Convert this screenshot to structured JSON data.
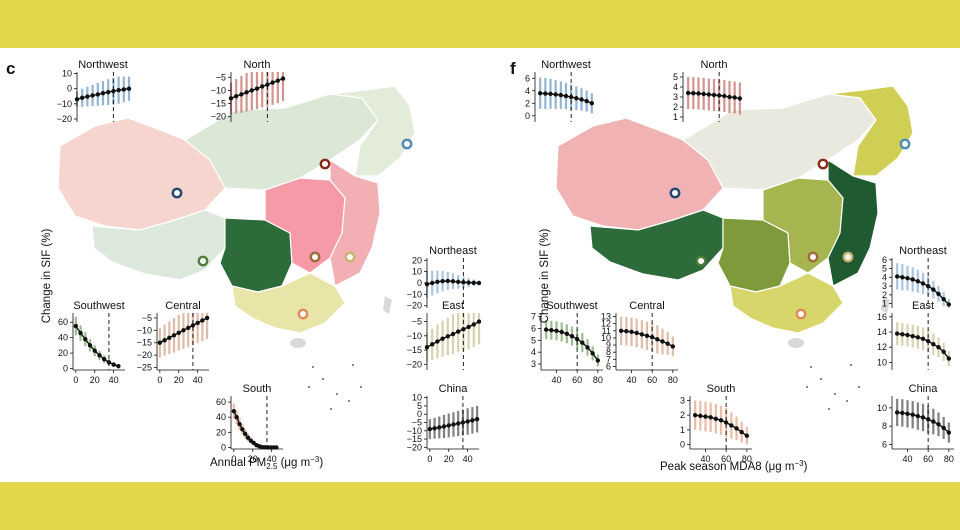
{
  "panels": [
    {
      "letter": "c",
      "ylabel": "Change in SIF (%)",
      "xlabel": "Annual PM",
      "xlabel_sub": "2.5",
      "xlabel_unit": " (μg m",
      "xlabel_exp": "−3",
      "xlabel_close": ")"
    },
    {
      "letter": "f",
      "ylabel": "Change in SIF (%)",
      "xlabel": "Peak season MDA8 (μg m",
      "xlabel_sub": "",
      "xlabel_unit": "",
      "xlabel_exp": "−3",
      "xlabel_close": ")"
    }
  ],
  "region_colors": {
    "Northwest": "#6f9bc3",
    "North": "#c4706a",
    "Northeast": "#8fb2d3",
    "Southwest": "#7aa76a",
    "Central": "#d4a58a",
    "East": "#c9c194",
    "South": "#e3a585",
    "China": "#555555"
  },
  "chart_data": [
    {
      "type": "line",
      "panel": "c",
      "ylabel": "Change in SIF (%)",
      "xlabel": "Annual PM2.5 (μg m−3)",
      "legend": "none",
      "grid": false,
      "charts": [
        {
          "region": "Northwest",
          "xlim": [
            0,
            50
          ],
          "ylim": [
            -22,
            11
          ],
          "yticks": [
            10,
            0,
            -10,
            -20
          ],
          "xticks": [],
          "threshold": 35,
          "x": [
            0,
            5,
            10,
            15,
            20,
            25,
            30,
            35,
            40,
            45,
            50
          ],
          "y": [
            -7,
            -6,
            -5.2,
            -4.5,
            -3.8,
            -3,
            -2.3,
            -1.6,
            -1,
            -0.5,
            0
          ],
          "band": [
            5,
            6,
            6.5,
            7,
            7.5,
            8,
            8.5,
            9,
            9,
            8.5,
            8
          ]
        },
        {
          "region": "North",
          "xlim": [
            0,
            50
          ],
          "ylim": [
            -22,
            -3
          ],
          "yticks": [
            -5,
            -10,
            -15,
            -20
          ],
          "xticks": [],
          "threshold": 35,
          "x": [
            0,
            5,
            10,
            15,
            20,
            25,
            30,
            35,
            40,
            45,
            50
          ],
          "y": [
            -13,
            -12.2,
            -11.5,
            -10.7,
            -10,
            -9.3,
            -8.5,
            -7.8,
            -7,
            -6.3,
            -5.5
          ],
          "band": [
            6,
            6.5,
            7,
            7.3,
            7.5,
            7.8,
            8,
            8.3,
            8.5,
            8.5,
            8.5
          ]
        },
        {
          "region": "Northeast",
          "xlim": [
            0,
            50
          ],
          "ylim": [
            -22,
            22
          ],
          "yticks": [
            20,
            10,
            0,
            -10,
            -20
          ],
          "xticks": [],
          "threshold": 35,
          "x": [
            0,
            5,
            10,
            15,
            20,
            25,
            30,
            35,
            40,
            45,
            50
          ],
          "y": [
            -1,
            0,
            1,
            1.6,
            1.8,
            1.5,
            1,
            0.6,
            0.4,
            0.2,
            0
          ],
          "band": [
            12,
            11,
            10,
            9,
            8,
            7,
            6,
            5,
            4,
            3,
            2
          ]
        },
        {
          "region": "Southwest",
          "xlim": [
            -3,
            52
          ],
          "ylim": [
            -2,
            72
          ],
          "yticks": [
            60,
            40,
            20,
            0
          ],
          "xticks": [
            0,
            20,
            40
          ],
          "threshold": 35,
          "x": [
            0,
            5,
            10,
            15,
            20,
            25,
            30,
            35,
            40,
            45
          ],
          "y": [
            55,
            46,
            38,
            30,
            23,
            17,
            12,
            8,
            5,
            3
          ],
          "band": [
            12,
            10,
            9,
            8,
            7,
            6,
            5,
            4,
            3,
            2
          ]
        },
        {
          "region": "Central",
          "xlim": [
            -3,
            52
          ],
          "ylim": [
            -26,
            -3
          ],
          "yticks": [
            -5,
            -10,
            -15,
            -20,
            -25
          ],
          "xticks": [
            0,
            20,
            40
          ],
          "threshold": 35,
          "x": [
            0,
            5,
            10,
            15,
            20,
            25,
            30,
            35,
            40,
            45,
            50
          ],
          "y": [
            -15,
            -14,
            -13,
            -12,
            -11,
            -10,
            -9,
            -8,
            -7,
            -6,
            -5
          ],
          "band": [
            6,
            6.3,
            6.6,
            7,
            7.2,
            7.5,
            7.8,
            8,
            8.2,
            8.4,
            8.5
          ]
        },
        {
          "region": "East",
          "xlim": [
            0,
            50
          ],
          "ylim": [
            -22,
            -2
          ],
          "yticks": [
            -5,
            -10,
            -15,
            -20
          ],
          "xticks": [],
          "threshold": 35,
          "x": [
            0,
            5,
            10,
            15,
            20,
            25,
            30,
            35,
            40,
            45,
            50
          ],
          "y": [
            -14,
            -13,
            -12,
            -11,
            -10.2,
            -9.4,
            -8.5,
            -7.7,
            -6.9,
            -6,
            -5
          ],
          "band": [
            5,
            5.5,
            6,
            6.3,
            6.6,
            7,
            7.3,
            7.6,
            7.8,
            8,
            8
          ]
        },
        {
          "region": "South",
          "xlim": [
            -3,
            52
          ],
          "ylim": [
            -2,
            68
          ],
          "yticks": [
            60,
            40,
            20,
            0
          ],
          "xticks": [
            0,
            20,
            40
          ],
          "threshold": 35,
          "x": [
            0,
            3,
            6,
            9,
            12,
            15,
            18,
            21,
            24,
            27,
            30,
            33,
            36,
            39,
            42,
            45
          ],
          "y": [
            48,
            40,
            31,
            24,
            18,
            13,
            9,
            6,
            3,
            1.5,
            0.6,
            0.2,
            0,
            0,
            0,
            0
          ],
          "band": [
            10,
            9,
            8,
            7,
            6,
            5,
            4,
            3,
            2,
            1.5,
            1,
            0.5,
            0.3,
            0.2,
            0.1,
            0
          ]
        },
        {
          "region": "China",
          "xlim": [
            -3,
            52
          ],
          "ylim": [
            -21,
            11
          ],
          "yticks": [
            10,
            5,
            0,
            -5,
            -10,
            -15,
            -20
          ],
          "xticks": [
            0,
            20,
            40
          ],
          "threshold": 35,
          "x": [
            0,
            5,
            10,
            15,
            20,
            25,
            30,
            35,
            40,
            45,
            50
          ],
          "y": [
            -9,
            -8.5,
            -8,
            -7.4,
            -6.8,
            -6.2,
            -5.6,
            -5,
            -4.4,
            -3.7,
            -3
          ],
          "band": [
            6,
            6.3,
            6.6,
            7,
            7.2,
            7.4,
            7.6,
            7.8,
            8,
            8,
            8
          ]
        }
      ]
    },
    {
      "type": "line",
      "panel": "f",
      "ylabel": "Change in SIF (%)",
      "xlabel": "Peak season MDA8 (μg m−3)",
      "legend": "none",
      "grid": false,
      "charts": [
        {
          "region": "Northwest",
          "xlim": [
            25,
            85
          ],
          "ylim": [
            -1,
            7
          ],
          "yticks": [
            6,
            4,
            2,
            0
          ],
          "xticks": [],
          "threshold": 60,
          "x": [
            30,
            35,
            40,
            45,
            50,
            55,
            60,
            65,
            70,
            75,
            80
          ],
          "y": [
            3.6,
            3.55,
            3.5,
            3.4,
            3.3,
            3.15,
            3,
            2.8,
            2.6,
            2.35,
            2
          ],
          "band": [
            2.5,
            2.5,
            2.4,
            2.3,
            2.2,
            2.1,
            2,
            1.9,
            1.8,
            1.7,
            1.6
          ]
        },
        {
          "region": "North",
          "xlim": [
            25,
            85
          ],
          "ylim": [
            0.5,
            5.5
          ],
          "yticks": [
            5,
            4,
            3,
            2,
            1
          ],
          "xticks": [],
          "threshold": 60,
          "x": [
            30,
            35,
            40,
            45,
            50,
            55,
            60,
            65,
            70,
            75,
            80
          ],
          "y": [
            3.4,
            3.38,
            3.35,
            3.3,
            3.25,
            3.2,
            3.15,
            3.1,
            3,
            2.95,
            2.85
          ],
          "band": [
            1.6,
            1.6,
            1.6,
            1.6,
            1.6,
            1.6,
            1.6,
            1.6,
            1.6,
            1.6,
            1.6
          ]
        },
        {
          "region": "Northeast",
          "xlim": [
            25,
            85
          ],
          "ylim": [
            0.5,
            6.2
          ],
          "yticks": [
            6,
            5,
            4,
            3,
            2,
            1
          ],
          "xticks": [],
          "threshold": 60,
          "x": [
            30,
            35,
            40,
            45,
            50,
            55,
            60,
            65,
            70,
            75,
            80
          ],
          "y": [
            4.1,
            4,
            3.9,
            3.75,
            3.55,
            3.3,
            3,
            2.6,
            2.1,
            1.5,
            0.9
          ],
          "band": [
            1.5,
            1.5,
            1.4,
            1.4,
            1.3,
            1.2,
            1.1,
            1,
            0.9,
            0.8,
            0.6
          ]
        },
        {
          "region": "Southwest",
          "xlim": [
            25,
            85
          ],
          "ylim": [
            2.5,
            7.3
          ],
          "yticks": [
            7,
            6,
            5,
            4,
            3
          ],
          "xticks": [
            40,
            60,
            80
          ],
          "threshold": 60,
          "x": [
            30,
            35,
            40,
            45,
            50,
            55,
            60,
            65,
            70,
            75,
            80
          ],
          "y": [
            5.9,
            5.85,
            5.8,
            5.7,
            5.55,
            5.35,
            5.1,
            4.8,
            4.4,
            3.9,
            3.3
          ],
          "band": [
            0.8,
            0.8,
            0.8,
            0.8,
            0.8,
            0.8,
            0.8,
            0.8,
            0.7,
            0.6,
            0.5
          ]
        },
        {
          "region": "Central",
          "xlim": [
            25,
            85
          ],
          "ylim": [
            5.5,
            13.5
          ],
          "yticks": [
            13,
            12,
            11,
            10,
            9,
            8,
            7,
            6
          ],
          "xticks": [
            40,
            60,
            80
          ],
          "threshold": 60,
          "x": [
            30,
            35,
            40,
            45,
            50,
            55,
            60,
            65,
            70,
            75,
            80
          ],
          "y": [
            11,
            10.95,
            10.85,
            10.7,
            10.5,
            10.3,
            10.1,
            9.8,
            9.5,
            9.2,
            8.8
          ],
          "band": [
            2,
            2,
            2,
            2,
            2,
            2,
            2,
            2,
            1.8,
            1.6,
            1.4
          ]
        },
        {
          "region": "East",
          "xlim": [
            25,
            85
          ],
          "ylim": [
            9,
            16.5
          ],
          "yticks": [
            16,
            14,
            12,
            10
          ],
          "xticks": [],
          "threshold": 60,
          "x": [
            30,
            35,
            40,
            45,
            50,
            55,
            60,
            65,
            70,
            75,
            80
          ],
          "y": [
            13.8,
            13.7,
            13.6,
            13.45,
            13.3,
            13.1,
            12.8,
            12.4,
            12,
            11.4,
            10.5
          ],
          "band": [
            1.5,
            1.5,
            1.5,
            1.5,
            1.5,
            1.5,
            1.5,
            1.4,
            1.3,
            1.2,
            1
          ]
        },
        {
          "region": "South",
          "xlim": [
            25,
            85
          ],
          "ylim": [
            -0.3,
            3.3
          ],
          "yticks": [
            3,
            2,
            1,
            0
          ],
          "xticks": [
            40,
            60,
            80
          ],
          "threshold": 60,
          "x": [
            30,
            35,
            40,
            45,
            50,
            55,
            60,
            65,
            70,
            75,
            80
          ],
          "y": [
            2,
            1.95,
            1.9,
            1.85,
            1.75,
            1.65,
            1.5,
            1.3,
            1.1,
            0.85,
            0.6
          ],
          "band": [
            1,
            1,
            1,
            1,
            1,
            1,
            1,
            0.9,
            0.8,
            0.7,
            0.6
          ]
        },
        {
          "region": "China",
          "xlim": [
            25,
            85
          ],
          "ylim": [
            5.5,
            11.3
          ],
          "yticks": [
            10,
            8,
            6
          ],
          "xticks": [
            40,
            60,
            80
          ],
          "threshold": 60,
          "x": [
            30,
            35,
            40,
            45,
            50,
            55,
            60,
            65,
            70,
            75,
            80
          ],
          "y": [
            9.5,
            9.45,
            9.35,
            9.25,
            9.1,
            8.95,
            8.75,
            8.5,
            8.2,
            7.8,
            7.3
          ],
          "band": [
            1.5,
            1.5,
            1.5,
            1.5,
            1.5,
            1.5,
            1.5,
            1.4,
            1.3,
            1.2,
            1.1
          ]
        }
      ]
    }
  ]
}
